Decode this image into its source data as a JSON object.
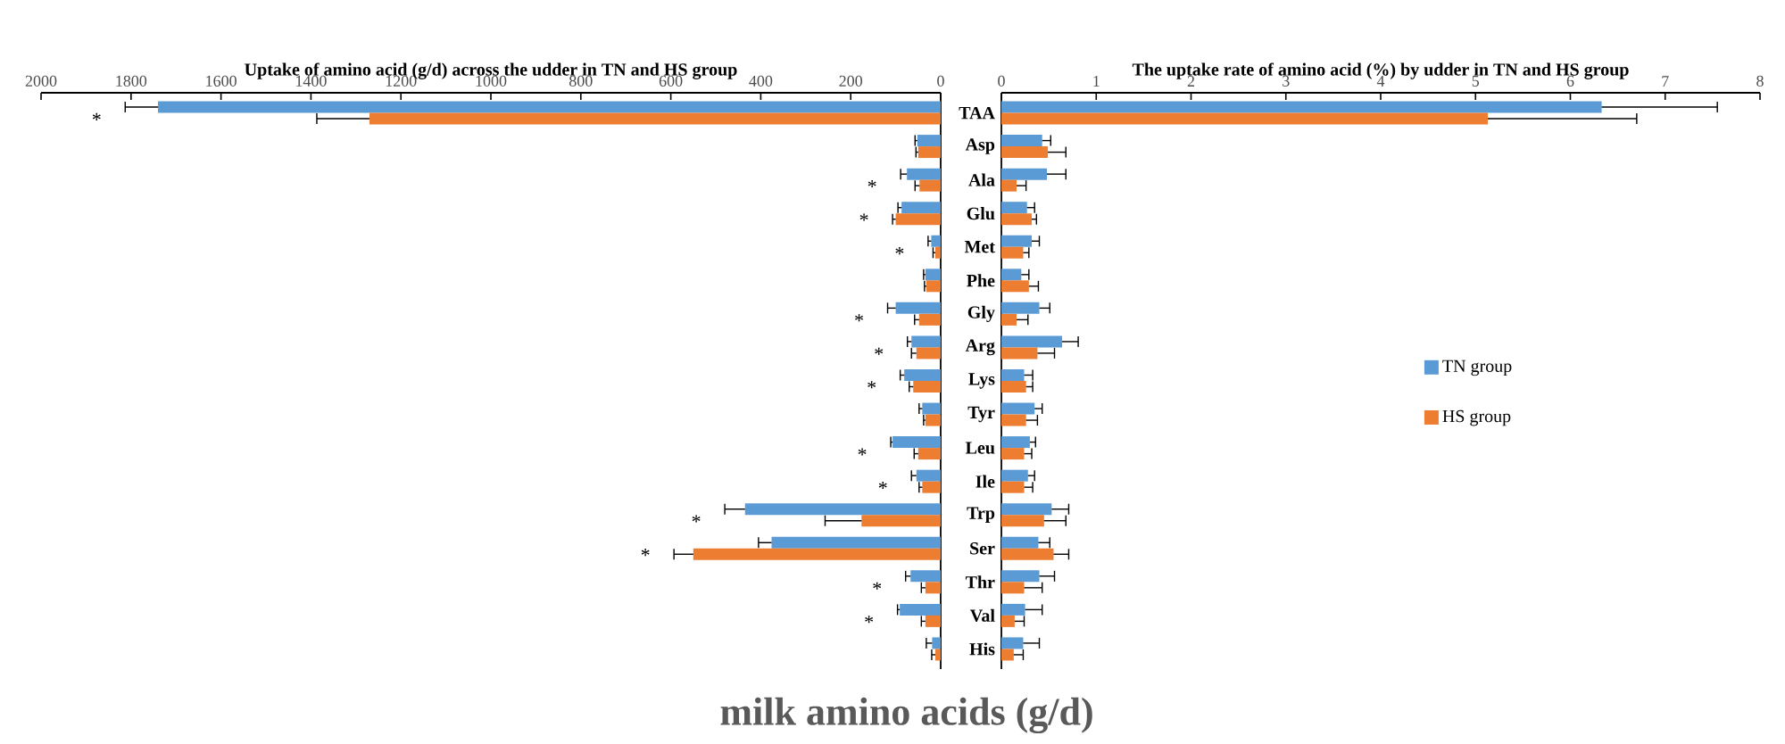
{
  "chart_data": [
    {
      "type": "bar",
      "orientation": "horizontal",
      "title": "Uptake of amino acid (g/d) across the udder in TN and HS group",
      "categories": [
        "TAA",
        "Asp",
        "Ala",
        "Glu",
        "Met",
        "Phe",
        "Gly",
        "Arg",
        "Lys",
        "Tyr",
        "Leu",
        "Ile",
        "Trp",
        "Ser",
        "Thr",
        "Val",
        "His"
      ],
      "series": [
        {
          "color": "#5b9bd5",
          "values": [
            1740,
            52,
            75,
            87,
            21,
            34,
            100,
            65,
            81,
            41,
            107,
            54,
            435,
            376,
            67,
            91,
            19
          ],
          "errors": [
            73,
            5,
            14,
            8,
            7,
            4,
            18,
            9,
            9,
            7,
            4,
            11,
            45,
            29,
            11,
            5,
            13
          ]
        },
        {
          "color": "#ed7d31",
          "values": [
            1270,
            50,
            47,
            100,
            12,
            32,
            48,
            54,
            61,
            34,
            50,
            41,
            176,
            550,
            34,
            34,
            12
          ],
          "errors": [
            117,
            5,
            10,
            7,
            5,
            4,
            10,
            11,
            9,
            4,
            9,
            7,
            81,
            43,
            9,
            9,
            8
          ]
        }
      ],
      "xlim": [
        2000,
        0
      ],
      "xticks": [
        2000,
        1800,
        1600,
        1400,
        1200,
        1000,
        800,
        600,
        400,
        200,
        0
      ],
      "tick_labels": "x",
      "annotations": [
        {
          "text": "*",
          "x": 1813,
          "y": "TAA"
        },
        {
          "text": "*",
          "x": 89,
          "y": "Ala"
        },
        {
          "text": "*",
          "x": 107,
          "y": "Glu"
        },
        {
          "text": "*",
          "x": 28,
          "y": "Met"
        },
        {
          "text": "*",
          "x": 118,
          "y": "Gly"
        },
        {
          "text": "*",
          "x": 74,
          "y": "Arg"
        },
        {
          "text": "*",
          "x": 90,
          "y": "Lys"
        },
        {
          "text": "*",
          "x": 111,
          "y": "Leu"
        },
        {
          "text": "*",
          "x": 65,
          "y": "Ile"
        },
        {
          "text": "*",
          "x": 480,
          "y": "Trp"
        },
        {
          "text": "*",
          "x": 593,
          "y": "Ser"
        },
        {
          "text": "*",
          "x": 78,
          "y": "Thr"
        },
        {
          "text": "*",
          "x": 96,
          "y": "Val"
        },
        "milk amino acids (g/d)"
      ]
    },
    {
      "type": "bar",
      "orientation": "horizontal",
      "title": "The uptake rate of amino acid (%) by udder in TN and HS group",
      "categories": [
        "TAA",
        "Asp",
        "Ala",
        "Glu",
        "Met",
        "Phe",
        "Gly",
        "Arg",
        "Lys",
        "Tyr",
        "Leu",
        "Ile",
        "Trp",
        "Ser",
        "Thr",
        "Val",
        "His"
      ],
      "series": [
        {
          "name": "TN group",
          "color": "#5b9bd5",
          "values": [
            6.33,
            0.43,
            0.48,
            0.27,
            0.32,
            0.21,
            0.4,
            0.64,
            0.24,
            0.35,
            0.3,
            0.28,
            0.53,
            0.39,
            0.4,
            0.25,
            0.23
          ],
          "errors": [
            1.22,
            0.09,
            0.2,
            0.08,
            0.08,
            0.08,
            0.11,
            0.17,
            0.09,
            0.08,
            0.06,
            0.07,
            0.18,
            0.12,
            0.16,
            0.18,
            0.17
          ]
        },
        {
          "name": "HS group",
          "color": "#ed7d31",
          "values": [
            5.13,
            0.49,
            0.16,
            0.32,
            0.23,
            0.29,
            0.16,
            0.38,
            0.26,
            0.26,
            0.24,
            0.24,
            0.45,
            0.55,
            0.24,
            0.14,
            0.13
          ],
          "errors": [
            1.57,
            0.19,
            0.1,
            0.05,
            0.06,
            0.1,
            0.12,
            0.18,
            0.07,
            0.12,
            0.08,
            0.09,
            0.23,
            0.16,
            0.19,
            0.1,
            0.1
          ]
        }
      ],
      "xlim": [
        0,
        8
      ],
      "xticks": [
        0,
        1,
        2,
        3,
        4,
        5,
        6,
        7,
        8
      ],
      "legend": "right"
    }
  ]
}
